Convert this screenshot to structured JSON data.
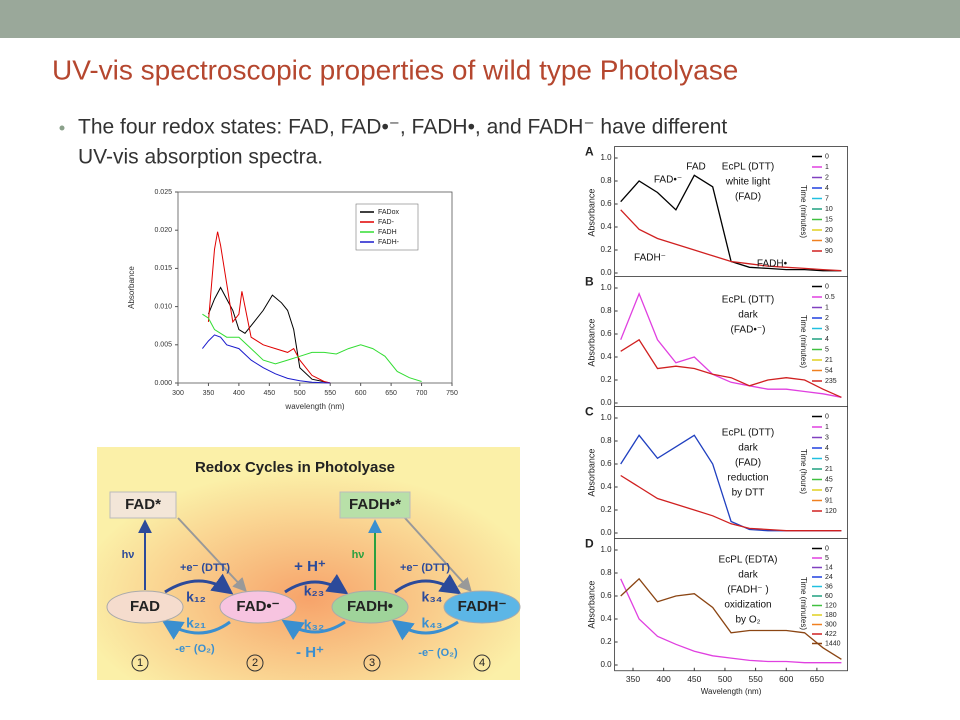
{
  "header": {
    "title": "UV-vis spectroscopic properties of wild type Photolyase"
  },
  "bullet": {
    "lines": [
      "The four redox states: FAD, FAD•⁻, FADH•, and FADH⁻ have different",
      "UV-vis absorption spectra."
    ]
  },
  "chart_data": [
    {
      "type": "line",
      "xlabel": "wavelength (nm)",
      "ylabel": "Absorbance",
      "xlim": [
        300,
        750
      ],
      "xticks": [
        300,
        350,
        400,
        450,
        500,
        550,
        600,
        650,
        700,
        750
      ],
      "ylim": [
        0,
        0.025
      ],
      "yticks": [
        {
          "value": 0,
          "label": "0.000"
        },
        {
          "value": 0.005,
          "label": "0.005"
        },
        {
          "value": 0.01,
          "label": "0.010"
        },
        {
          "value": 0.015,
          "label": "0.015"
        },
        {
          "value": 0.02,
          "label": "0.020"
        },
        {
          "value": 0.025,
          "label": "0.025"
        }
      ],
      "legend": "upper right",
      "series": [
        {
          "name": "FADox",
          "color": "#000000",
          "x": [
            350,
            360,
            370,
            380,
            390,
            400,
            410,
            420,
            440,
            455,
            470,
            480,
            490,
            500,
            520,
            550
          ],
          "values": [
            0.009,
            0.011,
            0.0125,
            0.011,
            0.0095,
            0.007,
            0.0065,
            0.0075,
            0.0095,
            0.0115,
            0.0105,
            0.0095,
            0.007,
            0.002,
            0.0005,
            0
          ]
        },
        {
          "name": "FAD-",
          "color": "#e00000",
          "x": [
            350,
            360,
            365,
            370,
            380,
            390,
            400,
            405,
            410,
            420,
            440,
            460,
            480,
            490,
            500,
            520,
            540,
            550
          ],
          "values": [
            0.008,
            0.0175,
            0.0198,
            0.018,
            0.013,
            0.008,
            0.009,
            0.012,
            0.01,
            0.006,
            0.005,
            0.0045,
            0.004,
            0.0045,
            0.003,
            0.001,
            0.0002,
            0
          ]
        },
        {
          "name": "FADH",
          "color": "#33dd33",
          "x": [
            340,
            350,
            360,
            380,
            400,
            420,
            440,
            460,
            480,
            500,
            520,
            540,
            560,
            580,
            600,
            620,
            640,
            660,
            680,
            700
          ],
          "values": [
            0.009,
            0.0085,
            0.007,
            0.006,
            0.006,
            0.0045,
            0.003,
            0.0025,
            0.003,
            0.0035,
            0.004,
            0.004,
            0.0038,
            0.0045,
            0.005,
            0.0045,
            0.0035,
            0.0015,
            0.0007,
            0.0002
          ]
        },
        {
          "name": "FADH-",
          "color": "#1a1acc",
          "x": [
            340,
            350,
            360,
            370,
            380,
            400,
            420,
            440,
            460,
            480,
            500,
            520,
            550
          ],
          "values": [
            0.0045,
            0.0055,
            0.0063,
            0.006,
            0.005,
            0.0045,
            0.003,
            0.002,
            0.0012,
            0.0006,
            0.0003,
            0.0001,
            0
          ]
        }
      ]
    },
    {
      "type": "line",
      "panel_label": "A",
      "ylabel": "Absorbance",
      "xlim": [
        320,
        700
      ],
      "ylim": [
        -0.05,
        1.1
      ],
      "yticks": [
        {
          "value": 0,
          "label": "0.0"
        },
        0.2,
        0.4,
        0.6,
        0.8,
        {
          "value": 1,
          "label": "1.0"
        }
      ],
      "annotations": [
        "FAD",
        "FAD•⁻",
        "FADH⁻",
        "FADH•",
        "EcPL (DTT)",
        "white light",
        "(FAD)"
      ],
      "legend": {
        "title": "Time (minutes)",
        "entries": [
          {
            "label": "0",
            "color": "#000000"
          },
          {
            "label": "1",
            "color": "#e040e0"
          },
          {
            "label": "2",
            "color": "#8040c0"
          },
          {
            "label": "4",
            "color": "#2040e0"
          },
          {
            "label": "7",
            "color": "#20c0e0"
          },
          {
            "label": "10",
            "color": "#20a080"
          },
          {
            "label": "15",
            "color": "#40c040"
          },
          {
            "label": "20",
            "color": "#e0d020"
          },
          {
            "label": "30",
            "color": "#f08020"
          },
          {
            "label": "90",
            "color": "#d02020"
          }
        ]
      },
      "x": [
        330,
        360,
        390,
        420,
        450,
        480,
        510,
        540,
        570,
        600,
        630,
        660,
        690
      ],
      "series": [
        {
          "color": "#000000",
          "values": [
            0.62,
            0.8,
            0.7,
            0.55,
            0.85,
            0.75,
            0.1,
            0.05,
            0.04,
            0.03,
            0.03,
            0.02,
            0.02
          ]
        },
        {
          "color": "#d02020",
          "values": [
            0.55,
            0.38,
            0.3,
            0.25,
            0.2,
            0.15,
            0.1,
            0.08,
            0.06,
            0.05,
            0.04,
            0.03,
            0.02
          ]
        }
      ]
    },
    {
      "type": "line",
      "panel_label": "B",
      "ylabel": "Absorbance",
      "xlim": [
        320,
        700
      ],
      "ylim": [
        -0.05,
        1.1
      ],
      "yticks": [
        {
          "value": 0,
          "label": "0.0"
        },
        0.2,
        0.4,
        0.6,
        0.8,
        {
          "value": 1,
          "label": "1.0"
        }
      ],
      "annotations": [
        "EcPL (DTT)",
        "dark",
        "(FAD•⁻)"
      ],
      "legend": {
        "title": "Time (minutes)",
        "entries": [
          {
            "label": "0",
            "color": "#000000"
          },
          {
            "label": "0.5",
            "color": "#e040e0"
          },
          {
            "label": "1",
            "color": "#8040c0"
          },
          {
            "label": "2",
            "color": "#2040e0"
          },
          {
            "label": "3",
            "color": "#20c0e0"
          },
          {
            "label": "4",
            "color": "#20a080"
          },
          {
            "label": "5",
            "color": "#40c040"
          },
          {
            "label": "21",
            "color": "#e0d020"
          },
          {
            "label": "54",
            "color": "#f08020"
          },
          {
            "label": "235",
            "color": "#d02020"
          }
        ]
      },
      "x": [
        330,
        360,
        390,
        420,
        450,
        480,
        510,
        540,
        570,
        600,
        630,
        660,
        690
      ],
      "series": [
        {
          "color": "#e040e0",
          "values": [
            0.55,
            0.95,
            0.55,
            0.35,
            0.4,
            0.25,
            0.18,
            0.15,
            0.12,
            0.12,
            0.1,
            0.08,
            0.05
          ]
        },
        {
          "color": "#d02020",
          "values": [
            0.45,
            0.55,
            0.3,
            0.32,
            0.3,
            0.25,
            0.22,
            0.15,
            0.2,
            0.22,
            0.2,
            0.12,
            0.05
          ]
        }
      ]
    },
    {
      "type": "line",
      "panel_label": "C",
      "ylabel": "Absorbance",
      "xlim": [
        320,
        700
      ],
      "ylim": [
        -0.05,
        1.1
      ],
      "yticks": [
        {
          "value": 0,
          "label": "0.0"
        },
        0.2,
        0.4,
        0.6,
        0.8,
        {
          "value": 1,
          "label": "1.0"
        }
      ],
      "annotations": [
        "EcPL (DTT)",
        "dark",
        "(FAD)",
        "reduction",
        "by DTT"
      ],
      "legend": {
        "title": "Time (hours)",
        "entries": [
          {
            "label": "0",
            "color": "#000000"
          },
          {
            "label": "1",
            "color": "#e040e0"
          },
          {
            "label": "3",
            "color": "#8040c0"
          },
          {
            "label": "4",
            "color": "#2040e0"
          },
          {
            "label": "5",
            "color": "#20c0e0"
          },
          {
            "label": "21",
            "color": "#20a080"
          },
          {
            "label": "45",
            "color": "#40c040"
          },
          {
            "label": "67",
            "color": "#e0d020"
          },
          {
            "label": "91",
            "color": "#f08020"
          },
          {
            "label": "120",
            "color": "#d02020"
          }
        ]
      },
      "x": [
        330,
        360,
        390,
        420,
        450,
        480,
        510,
        540,
        570,
        600,
        630,
        660,
        690
      ],
      "series": [
        {
          "color": "#2040c0",
          "values": [
            0.6,
            0.85,
            0.65,
            0.75,
            0.85,
            0.6,
            0.1,
            0.03,
            0.02,
            0.02,
            0.02,
            0.02,
            0.02
          ]
        },
        {
          "color": "#d02020",
          "values": [
            0.5,
            0.4,
            0.3,
            0.25,
            0.2,
            0.15,
            0.08,
            0.04,
            0.03,
            0.02,
            0.02,
            0.02,
            0.02
          ]
        }
      ]
    },
    {
      "type": "line",
      "panel_label": "D",
      "ylabel": "Absorbance",
      "xlabel": "Wavelength (nm)",
      "xlim": [
        320,
        700
      ],
      "ylim": [
        -0.05,
        1.1
      ],
      "xticks": [
        350,
        400,
        450,
        500,
        550,
        600,
        650
      ],
      "yticks": [
        {
          "value": 0,
          "label": "0.0"
        },
        0.2,
        0.4,
        0.6,
        0.8,
        {
          "value": 1,
          "label": "1.0"
        }
      ],
      "annotations": [
        "EcPL (EDTA)",
        "dark",
        "(FADH⁻ )",
        "oxidization",
        "by O₂"
      ],
      "legend": {
        "title": "Time (minutes)",
        "entries": [
          {
            "label": "0",
            "color": "#000000"
          },
          {
            "label": "5",
            "color": "#e040e0"
          },
          {
            "label": "14",
            "color": "#8040c0"
          },
          {
            "label": "24",
            "color": "#2040e0"
          },
          {
            "label": "36",
            "color": "#20c0e0"
          },
          {
            "label": "60",
            "color": "#20a080"
          },
          {
            "label": "120",
            "color": "#40c040"
          },
          {
            "label": "180",
            "color": "#e0d020"
          },
          {
            "label": "300",
            "color": "#f08020"
          },
          {
            "label": "422",
            "color": "#d02020"
          },
          {
            "label": "1440",
            "color": "#8b4513"
          }
        ]
      },
      "x": [
        330,
        360,
        390,
        420,
        450,
        480,
        510,
        540,
        570,
        600,
        630,
        660,
        690
      ],
      "series": [
        {
          "color": "#e040e0",
          "values": [
            0.75,
            0.4,
            0.25,
            0.18,
            0.12,
            0.08,
            0.06,
            0.04,
            0.03,
            0.03,
            0.02,
            0.02,
            0.02
          ]
        },
        {
          "color": "#8b4513",
          "values": [
            0.6,
            0.75,
            0.55,
            0.6,
            0.62,
            0.5,
            0.28,
            0.3,
            0.3,
            0.3,
            0.28,
            0.15,
            0.05
          ]
        }
      ]
    }
  ],
  "diagram": {
    "title": "Redox Cycles in Photolyase",
    "nodes": [
      "FAD*",
      "FADH•*",
      "FAD",
      "FAD•⁻",
      "FADH•",
      "FADH⁻"
    ],
    "labels": [
      "hν",
      "hν",
      "+e⁻ (DTT)",
      "+e⁻ (DTT)",
      "+ H⁺",
      "k₁₂",
      "k₂₁",
      "k₂₃",
      "k₃₂",
      "k₃₄",
      "k₄₃",
      "-e⁻ (O₂)",
      "- H⁺",
      "-e⁻ (O₂)",
      "1",
      "2",
      "3",
      "4"
    ]
  }
}
